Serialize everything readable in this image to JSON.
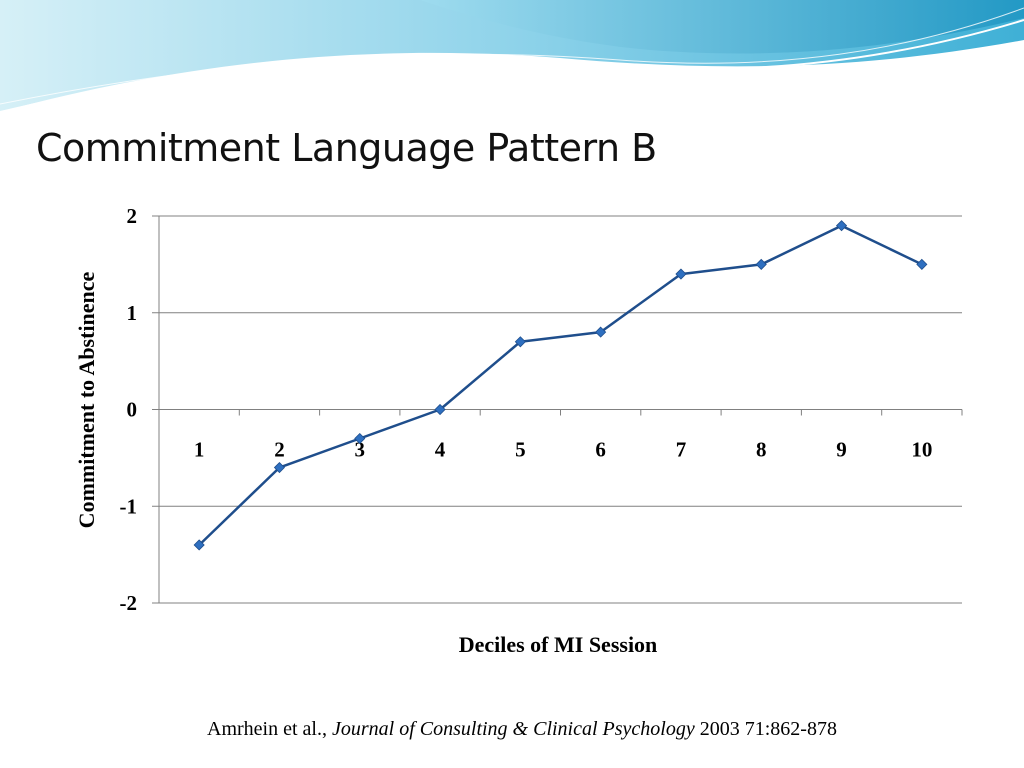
{
  "slide": {
    "title": "Commitment Language Pattern B"
  },
  "citation": {
    "authors": "Amrhein et al., ",
    "journal": "Journal of Consulting & Clinical Psychology",
    "details": "  2003  71:862-878"
  },
  "colors": {
    "banner_light": "#bfe6f2",
    "banner_mid": "#5ec3e0",
    "banner_dark": "#2a9cc6",
    "line": "#1f4e8c",
    "marker": "#2e6fc0",
    "grid": "#808080"
  },
  "chart_data": {
    "type": "line",
    "title": "",
    "xlabel": "Deciles of MI Session",
    "ylabel": "Commitment to Abstinence",
    "categories": [
      "1",
      "2",
      "3",
      "4",
      "5",
      "6",
      "7",
      "8",
      "9",
      "10"
    ],
    "series": [
      {
        "values": [
          -1.4,
          -0.6,
          -0.3,
          0.0,
          0.7,
          0.8,
          1.4,
          1.5,
          1.9,
          1.5
        ]
      }
    ],
    "ylim": [
      -2,
      2
    ],
    "yticks": [
      "2",
      "1",
      "0",
      "-1",
      "-2"
    ],
    "grid": true,
    "legend": "none",
    "marker": "diamond"
  }
}
